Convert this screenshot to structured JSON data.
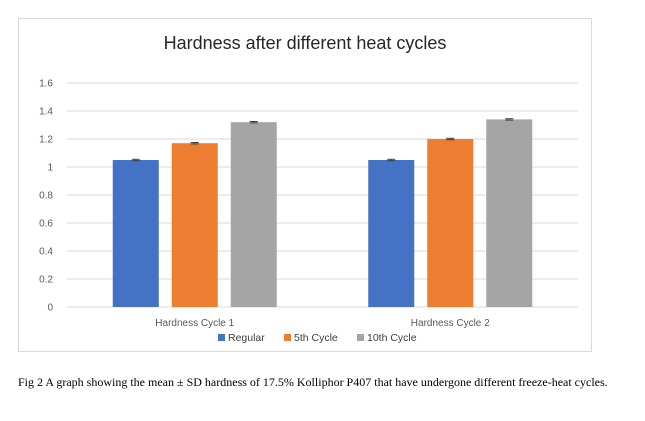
{
  "chart_data": {
    "type": "bar",
    "title": "Hardness after different heat cycles",
    "categories": [
      "Hardness Cycle 1",
      "Hardness Cycle 2"
    ],
    "series": [
      {
        "name": "Regular",
        "values": [
          1.05,
          1.05
        ],
        "errors": [
          0.005,
          0.005
        ],
        "color": "#4472c4"
      },
      {
        "name": "5th Cycle",
        "values": [
          1.17,
          1.2
        ],
        "errors": [
          0.005,
          0.005
        ],
        "color": "#ed7d31"
      },
      {
        "name": "10th Cycle",
        "values": [
          1.32,
          1.34
        ],
        "errors": [
          0.005,
          0.005
        ],
        "color": "#a5a5a5"
      }
    ],
    "ylim": [
      0,
      1.6
    ],
    "yticks": [
      "0",
      "0.2",
      "0.4",
      "0.6",
      "0.8",
      "1",
      "1.2",
      "1.4",
      "1.6"
    ],
    "grid": true,
    "legend": "bottom",
    "xlabel": "",
    "ylabel": ""
  },
  "caption": "Fig 2 A graph showing the mean ± SD hardness of 17.5% Kolliphor P407 that have undergone different freeze-heat cycles."
}
